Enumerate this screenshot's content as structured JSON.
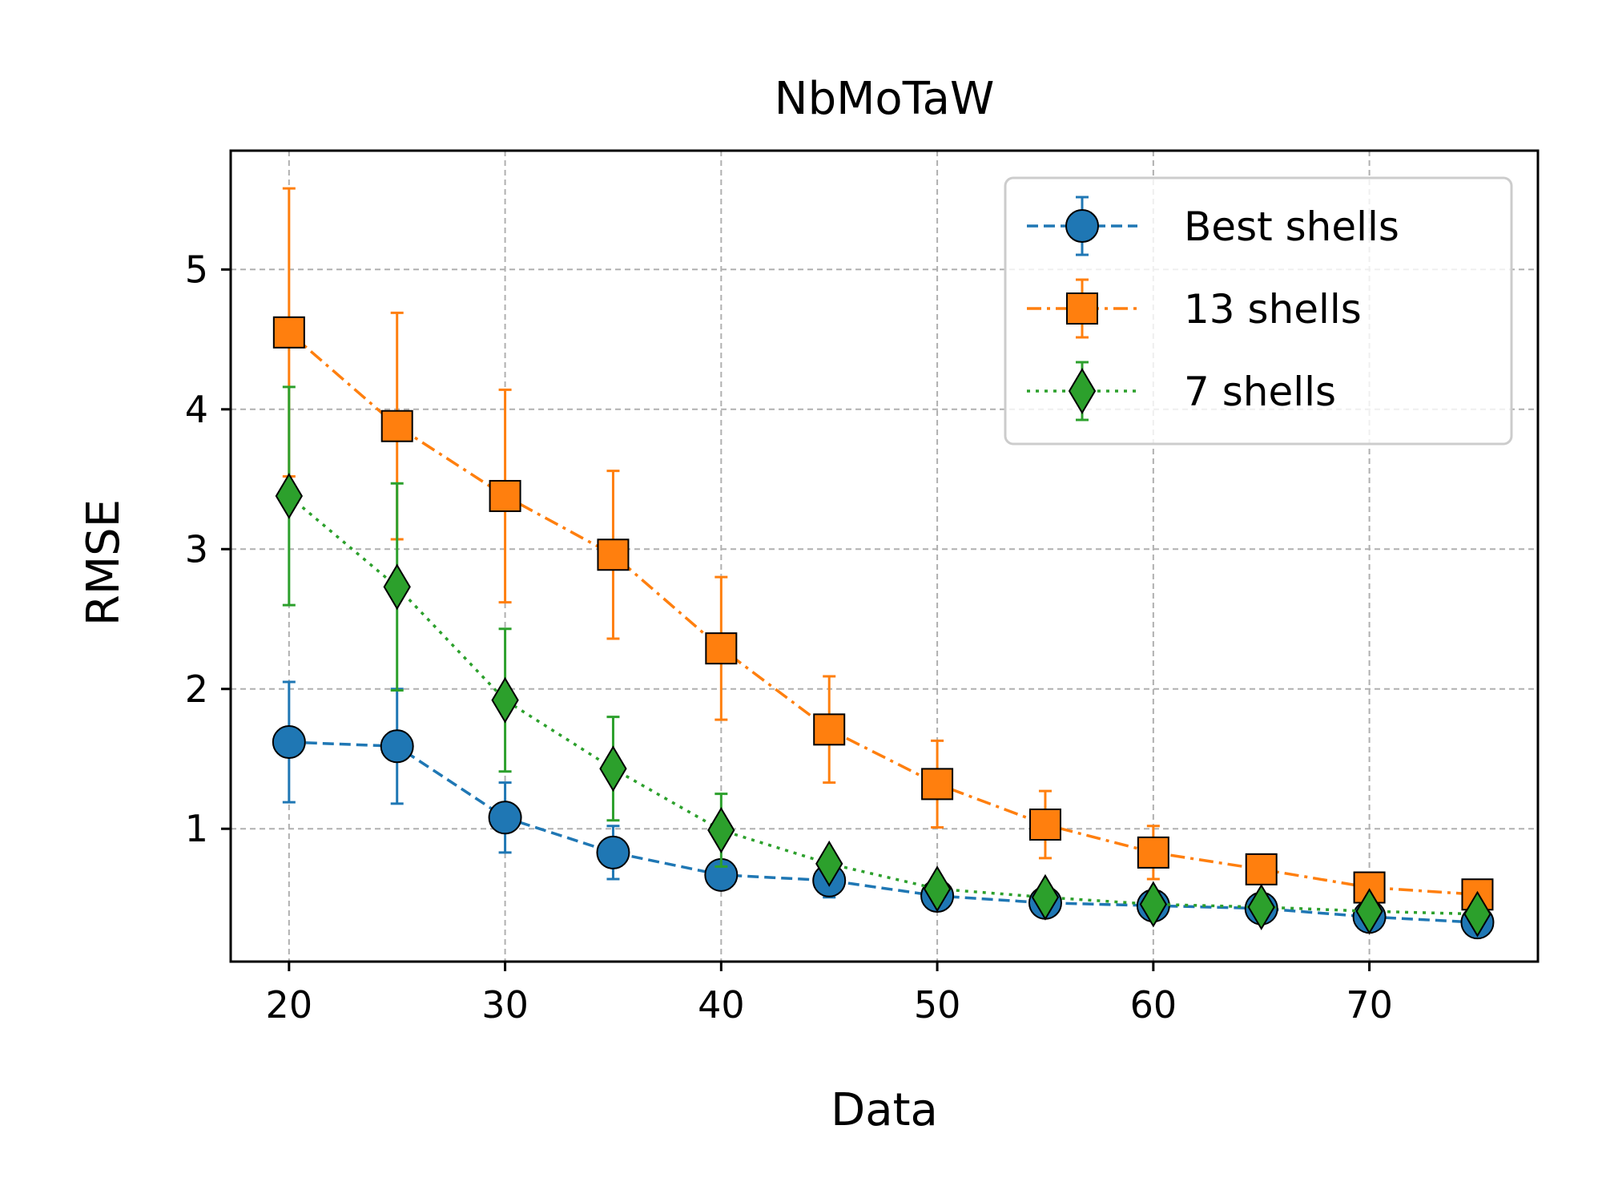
{
  "chart_data": {
    "type": "line",
    "title": "NbMoTaW",
    "xlabel": "Data",
    "ylabel": "RMSE",
    "xlim": [
      17.3,
      77.8
    ],
    "ylim": [
      0.05,
      5.85
    ],
    "xticks": [
      20,
      30,
      40,
      50,
      60,
      70
    ],
    "yticks": [
      1,
      2,
      3,
      4,
      5
    ],
    "grid": true,
    "legend_position": "top-right",
    "x": [
      20,
      25,
      30,
      35,
      40,
      45,
      50,
      55,
      60,
      65,
      70,
      75
    ],
    "series": [
      {
        "name": "Best shells",
        "color": "#1f77b4",
        "marker": "circle",
        "linestyle": "dashed",
        "values": [
          1.62,
          1.59,
          1.08,
          0.83,
          0.67,
          0.63,
          0.52,
          0.47,
          0.45,
          0.43,
          0.37,
          0.33
        ],
        "errors": [
          0.43,
          0.41,
          0.25,
          0.19,
          0.03,
          0.12,
          0.05,
          0.03,
          0.03,
          0.03,
          0.02,
          0.02
        ]
      },
      {
        "name": "13 shells",
        "color": "#ff7f0e",
        "marker": "square",
        "linestyle": "dashdot",
        "values": [
          4.55,
          3.88,
          3.38,
          2.96,
          2.29,
          1.71,
          1.32,
          1.03,
          0.83,
          0.71,
          0.58,
          0.53
        ],
        "errors": [
          1.03,
          0.81,
          0.76,
          0.6,
          0.51,
          0.38,
          0.31,
          0.24,
          0.19,
          0.04,
          0.04,
          0.03
        ]
      },
      {
        "name": "7 shells",
        "color": "#2ca02c",
        "marker": "diamond",
        "linestyle": "dotted",
        "values": [
          3.38,
          2.73,
          1.92,
          1.43,
          0.99,
          0.75,
          0.57,
          0.51,
          0.46,
          0.44,
          0.41,
          0.39
        ],
        "errors": [
          0.78,
          0.74,
          0.51,
          0.37,
          0.26,
          0.06,
          0.05,
          0.04,
          0.04,
          0.05,
          0.04,
          0.03
        ]
      }
    ]
  }
}
